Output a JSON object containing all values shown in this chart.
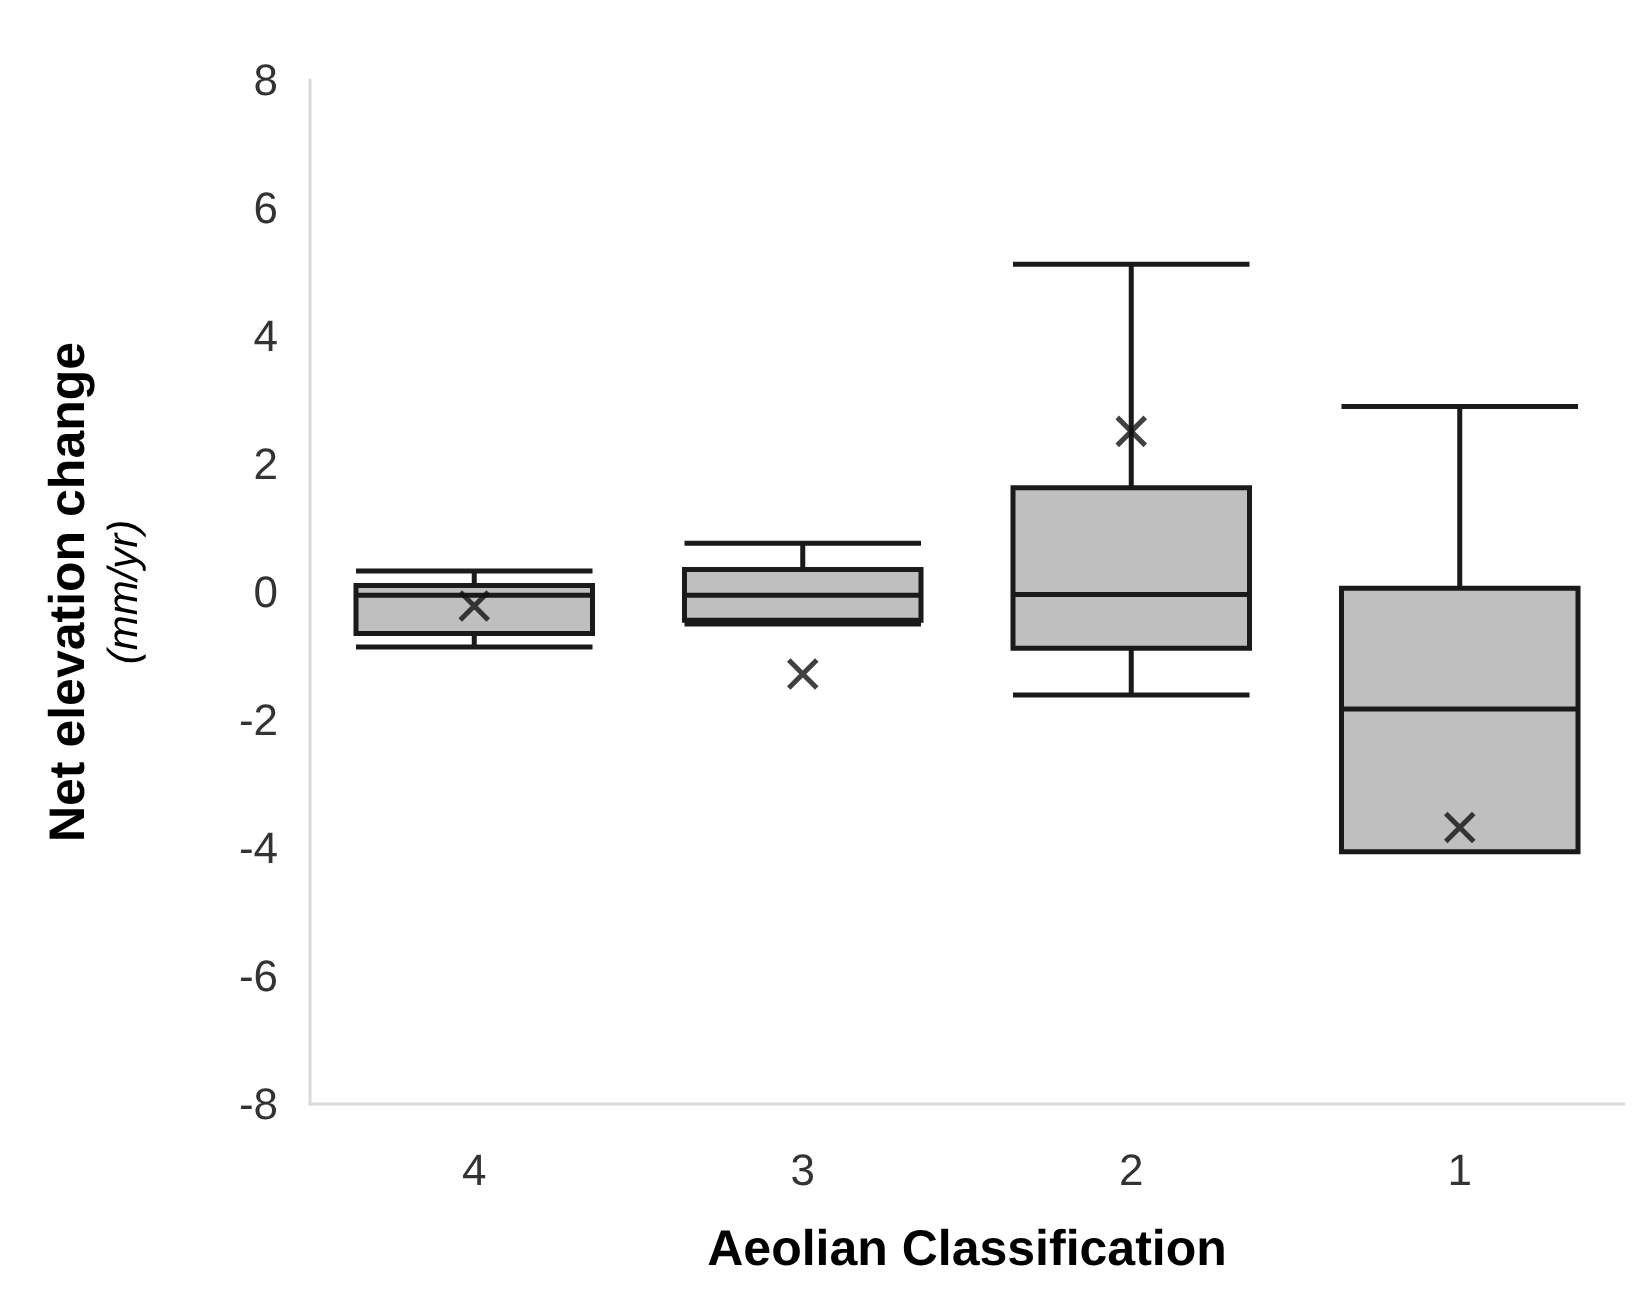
{
  "chart_data": {
    "type": "box",
    "xlabel": "Aeolian Classification",
    "ylabel": "Net elevation change\n(mm/yr)",
    "categories": [
      "4",
      "3",
      "2",
      "1"
    ],
    "boxes": [
      {
        "low": -0.86,
        "q1": -0.65,
        "median": -0.05,
        "q3": 0.1,
        "high": 0.33,
        "mean": -0.22
      },
      {
        "low": -0.5,
        "q1": -0.44,
        "median": -0.05,
        "q3": 0.35,
        "high": 0.76,
        "mean": -1.28
      },
      {
        "low": -1.61,
        "q1": -0.88,
        "median": -0.04,
        "q3": 1.63,
        "high": 5.12,
        "mean": 2.51
      },
      {
        "low": -4.06,
        "q1": -4.06,
        "median": -1.83,
        "q3": 0.06,
        "high": 2.9,
        "mean": -3.68
      }
    ],
    "color": "#bfbfbf",
    "ylim": [
      -8,
      8
    ],
    "yticks": [
      -8,
      -6,
      -4,
      -2,
      0,
      2,
      4,
      6,
      8
    ],
    "grid": false,
    "marker": "cross"
  }
}
